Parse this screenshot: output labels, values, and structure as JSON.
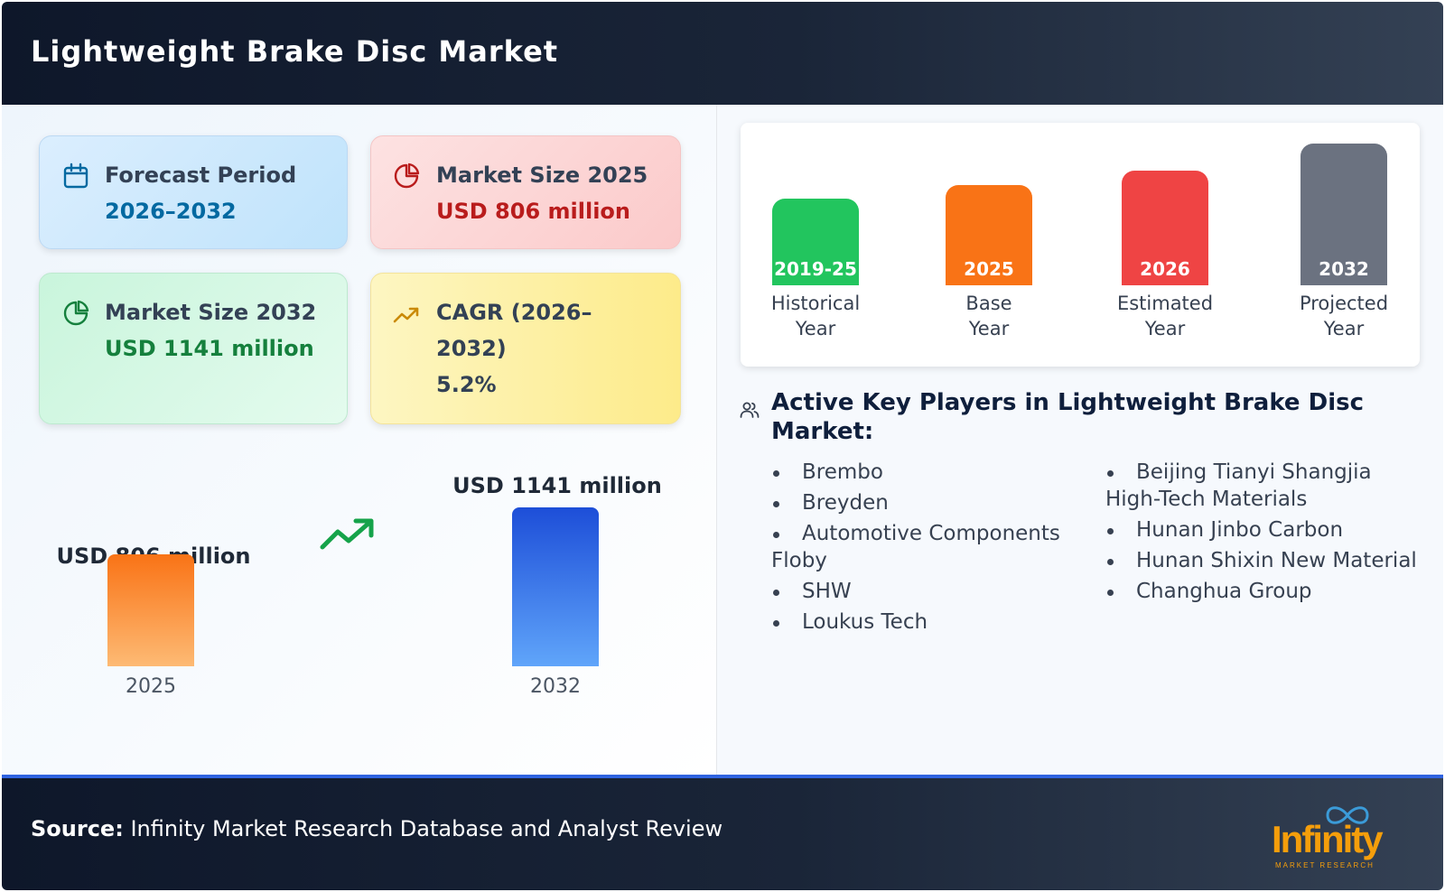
{
  "header": {
    "title": "Lightweight Brake Disc Market"
  },
  "cards": {
    "forecast": {
      "label": "Forecast Period",
      "value": "2026–2032",
      "color": "#0369a1",
      "icon": "calendar-icon"
    },
    "size_2025": {
      "label": "Market Size 2025",
      "value": "USD 806 million",
      "color": "#b91c1c",
      "icon": "pie-chart-icon"
    },
    "size_2032": {
      "label": "Market Size 2032",
      "value": "USD 1141 million",
      "color": "#15803d",
      "icon": "pie-chart-icon"
    },
    "cagr": {
      "label_line1": "CAGR (2026–",
      "label_line2": "2032)",
      "value": "5.2%",
      "icon": "trending-up-icon"
    }
  },
  "chart_data": [
    {
      "type": "bar",
      "categories": [
        "2025",
        "2032"
      ],
      "values": [
        806,
        1141
      ],
      "data_labels": [
        "USD 806 million",
        "USD 1141 million"
      ],
      "colors": [
        "#fb923c",
        "#2563eb"
      ],
      "unit": "USD million"
    },
    {
      "type": "bar",
      "categories": [
        "2019-25",
        "2025",
        "2026",
        "2032"
      ],
      "labels": [
        [
          "Historical",
          "Year"
        ],
        [
          "Base",
          "Year"
        ],
        [
          "Estimated",
          "Year"
        ],
        [
          "Projected",
          "Year"
        ]
      ],
      "relative_heights": [
        0.61,
        0.71,
        0.81,
        1.0
      ],
      "colors": [
        "#22c55e",
        "#f97316",
        "#ef4444",
        "#6b7280"
      ]
    }
  ],
  "key_players": {
    "title": "Active Key Players in Lightweight Brake Disc Market:",
    "column1": [
      "Brembo",
      "Breyden",
      "Automotive Components Floby",
      "SHW",
      "Loukus Tech"
    ],
    "column2": [
      "Beijing Tianyi Shangjia High-Tech Materials",
      "Hunan Jinbo Carbon",
      "Hunan Shixin New Material",
      "Changhua Group"
    ]
  },
  "footer": {
    "source_label": "Source:",
    "source_text": "Infinity Market Research Database and Analyst Review",
    "logo_word": "Infinity",
    "logo_sub": "MARKET RESEARCH"
  }
}
